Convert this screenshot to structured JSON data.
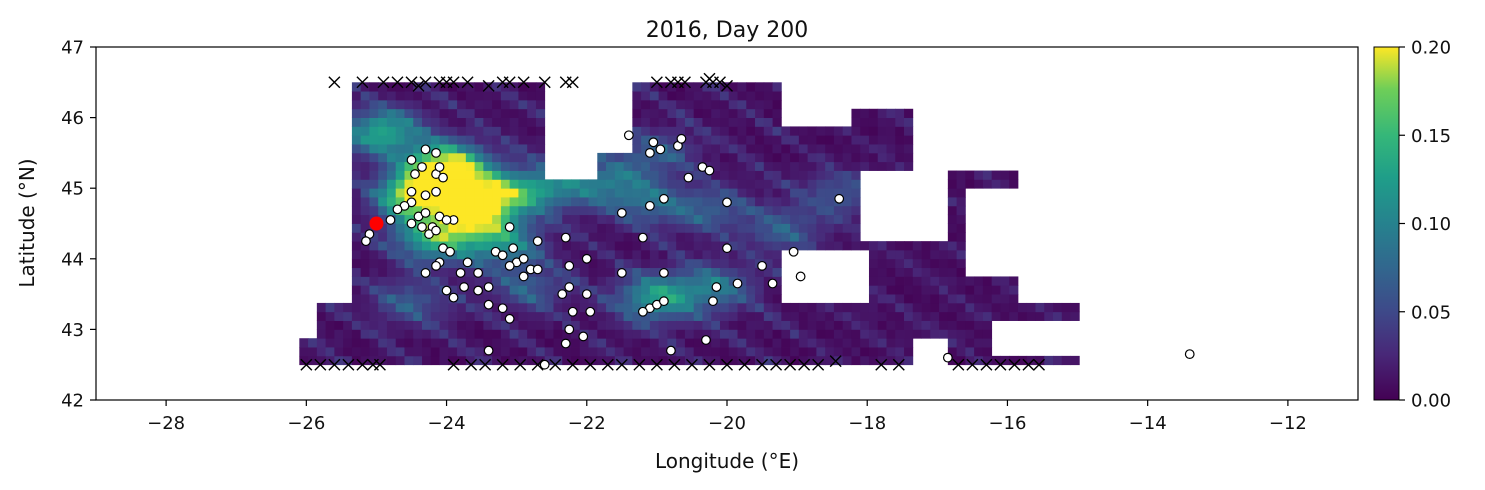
{
  "chart_data": {
    "type": "heatmap",
    "title": "2016, Day 200",
    "xlabel": "Longitude (°E)",
    "ylabel": "Latitude (°N)",
    "xlim": [
      -29,
      -11
    ],
    "ylim": [
      42,
      47
    ],
    "x_ticks": [
      -28,
      -26,
      -24,
      -22,
      -20,
      -18,
      -16,
      -14,
      -12
    ],
    "x_tick_labels": [
      "−28",
      "−26",
      "−24",
      "−22",
      "−20",
      "−18",
      "−16",
      "−14",
      "−12"
    ],
    "y_ticks": [
      42,
      43,
      44,
      45,
      46,
      47
    ],
    "y_tick_labels": [
      "42",
      "43",
      "44",
      "45",
      "46",
      "47"
    ],
    "colorbar": {
      "colormap": "viridis",
      "range": [
        0,
        0.2
      ],
      "ticks": [
        0.0,
        0.05,
        0.1,
        0.15,
        0.2
      ],
      "tick_labels": [
        "0.00",
        "0.05",
        "0.10",
        "0.15",
        "0.20"
      ]
    },
    "colors": {
      "particle_fill": "#ffffff",
      "particle_edge": "#000000",
      "release_point": "#ff0000",
      "beached_marker": "#000000"
    },
    "release_point": {
      "lon": -25.0,
      "lat": 44.5
    },
    "density_hotspots": [
      {
        "lon": -24.0,
        "lat": 45.3,
        "value": 0.2
      },
      {
        "lon": -24.4,
        "lat": 44.9,
        "value": 0.2
      },
      {
        "lon": -23.4,
        "lat": 44.9,
        "value": 0.16
      },
      {
        "lon": -24.9,
        "lat": 45.8,
        "value": 0.12
      },
      {
        "lon": -24.2,
        "lat": 44.3,
        "value": 0.12
      },
      {
        "lon": -23.6,
        "lat": 44.55,
        "value": 0.13
      },
      {
        "lon": -23.2,
        "lat": 44.2,
        "value": 0.08
      },
      {
        "lon": -22.6,
        "lat": 45.0,
        "value": 0.09
      },
      {
        "lon": -21.7,
        "lat": 45.1,
        "value": 0.07
      },
      {
        "lon": -21.1,
        "lat": 44.8,
        "value": 0.06
      },
      {
        "lon": -20.2,
        "lat": 44.7,
        "value": 0.05
      },
      {
        "lon": -21.0,
        "lat": 43.45,
        "value": 0.11
      },
      {
        "lon": -20.2,
        "lat": 43.6,
        "value": 0.07
      },
      {
        "lon": -19.2,
        "lat": 44.4,
        "value": 0.05
      },
      {
        "lon": -18.4,
        "lat": 44.9,
        "value": 0.05
      },
      {
        "lon": -21.0,
        "lat": 45.5,
        "value": 0.05
      },
      {
        "lon": -22.8,
        "lat": 43.6,
        "value": 0.05
      },
      {
        "lon": -24.5,
        "lat": 43.4,
        "value": 0.05
      }
    ],
    "particles": [
      [
        -24.3,
        45.55
      ],
      [
        -24.15,
        45.5
      ],
      [
        -24.35,
        45.3
      ],
      [
        -24.5,
        45.4
      ],
      [
        -24.45,
        45.2
      ],
      [
        -24.15,
        45.2
      ],
      [
        -24.05,
        45.15
      ],
      [
        -24.1,
        45.3
      ],
      [
        -24.5,
        44.95
      ],
      [
        -24.3,
        44.9
      ],
      [
        -24.15,
        44.95
      ],
      [
        -24.5,
        44.8
      ],
      [
        -24.6,
        44.75
      ],
      [
        -24.7,
        44.7
      ],
      [
        -24.4,
        44.6
      ],
      [
        -24.3,
        44.65
      ],
      [
        -24.1,
        44.6
      ],
      [
        -23.9,
        44.55
      ],
      [
        -24.0,
        44.55
      ],
      [
        -24.2,
        44.45
      ],
      [
        -24.35,
        44.45
      ],
      [
        -24.5,
        44.5
      ],
      [
        -24.8,
        44.55
      ],
      [
        -24.25,
        44.35
      ],
      [
        -24.15,
        44.4
      ],
      [
        -25.1,
        44.35
      ],
      [
        -25.15,
        44.25
      ],
      [
        -24.05,
        44.15
      ],
      [
        -23.95,
        44.1
      ],
      [
        -24.1,
        43.95
      ],
      [
        -24.3,
        43.8
      ],
      [
        -24.15,
        43.9
      ],
      [
        -23.8,
        43.8
      ],
      [
        -23.7,
        43.95
      ],
      [
        -23.55,
        43.8
      ],
      [
        -24.0,
        43.55
      ],
      [
        -23.9,
        43.45
      ],
      [
        -23.75,
        43.6
      ],
      [
        -23.55,
        43.55
      ],
      [
        -23.4,
        43.6
      ],
      [
        -23.4,
        43.35
      ],
      [
        -23.2,
        43.3
      ],
      [
        -23.1,
        43.15
      ],
      [
        -23.4,
        42.7
      ],
      [
        -23.3,
        44.1
      ],
      [
        -23.2,
        44.05
      ],
      [
        -23.1,
        44.45
      ],
      [
        -23.05,
        44.15
      ],
      [
        -23.0,
        43.95
      ],
      [
        -22.9,
        44.0
      ],
      [
        -23.1,
        43.9
      ],
      [
        -22.8,
        43.85
      ],
      [
        -22.9,
        43.75
      ],
      [
        -22.7,
        43.85
      ],
      [
        -22.7,
        44.25
      ],
      [
        -22.3,
        44.3
      ],
      [
        -22.25,
        43.9
      ],
      [
        -22.25,
        43.6
      ],
      [
        -22.35,
        43.5
      ],
      [
        -22.2,
        43.25
      ],
      [
        -22.25,
        43.0
      ],
      [
        -22.3,
        42.8
      ],
      [
        -22.0,
        43.5
      ],
      [
        -22.0,
        44.0
      ],
      [
        -21.5,
        43.8
      ],
      [
        -21.2,
        44.3
      ],
      [
        -21.1,
        43.3
      ],
      [
        -21.0,
        43.35
      ],
      [
        -21.2,
        43.25
      ],
      [
        -20.9,
        43.4
      ],
      [
        -20.9,
        43.8
      ],
      [
        -20.8,
        42.7
      ],
      [
        -21.5,
        44.65
      ],
      [
        -21.1,
        44.75
      ],
      [
        -20.9,
        44.85
      ],
      [
        -21.05,
        45.65
      ],
      [
        -21.1,
        45.5
      ],
      [
        -20.95,
        45.55
      ],
      [
        -20.7,
        45.6
      ],
      [
        -20.65,
        45.7
      ],
      [
        -21.4,
        45.75
      ],
      [
        -20.55,
        45.15
      ],
      [
        -20.35,
        45.3
      ],
      [
        -20.25,
        45.25
      ],
      [
        -20.0,
        44.8
      ],
      [
        -20.0,
        44.15
      ],
      [
        -19.5,
        43.9
      ],
      [
        -19.35,
        43.65
      ],
      [
        -19.85,
        43.65
      ],
      [
        -20.15,
        43.6
      ],
      [
        -19.05,
        44.1
      ],
      [
        -18.95,
        43.75
      ],
      [
        -20.2,
        43.4
      ],
      [
        -20.3,
        42.85
      ],
      [
        -18.4,
        44.85
      ],
      [
        -16.85,
        42.6
      ],
      [
        -13.4,
        42.65
      ],
      [
        -22.6,
        42.5
      ],
      [
        -22.05,
        42.9
      ],
      [
        -21.95,
        43.25
      ]
    ],
    "beached_top": [
      [
        -25.6,
        46.5
      ],
      [
        -25.2,
        46.5
      ],
      [
        -24.9,
        46.5
      ],
      [
        -24.7,
        46.5
      ],
      [
        -24.5,
        46.5
      ],
      [
        -24.4,
        46.45
      ],
      [
        -24.3,
        46.5
      ],
      [
        -24.1,
        46.5
      ],
      [
        -24.0,
        46.5
      ],
      [
        -23.9,
        46.5
      ],
      [
        -23.7,
        46.5
      ],
      [
        -23.4,
        46.45
      ],
      [
        -23.2,
        46.5
      ],
      [
        -23.1,
        46.5
      ],
      [
        -22.9,
        46.5
      ],
      [
        -22.6,
        46.5
      ],
      [
        -22.3,
        46.5
      ],
      [
        -22.2,
        46.5
      ],
      [
        -21.0,
        46.5
      ],
      [
        -20.8,
        46.5
      ],
      [
        -20.7,
        46.5
      ],
      [
        -20.6,
        46.5
      ],
      [
        -20.3,
        46.5
      ],
      [
        -20.2,
        46.5
      ],
      [
        -20.0,
        46.45
      ],
      [
        -20.1,
        46.5
      ],
      [
        -20.25,
        46.55
      ]
    ],
    "beached_bottom": [
      [
        -26.0,
        42.5
      ],
      [
        -25.8,
        42.5
      ],
      [
        -25.6,
        42.5
      ],
      [
        -25.4,
        42.5
      ],
      [
        -25.2,
        42.5
      ],
      [
        -25.05,
        42.5
      ],
      [
        -24.95,
        42.5
      ],
      [
        -23.9,
        42.5
      ],
      [
        -23.65,
        42.5
      ],
      [
        -23.45,
        42.5
      ],
      [
        -23.2,
        42.5
      ],
      [
        -22.95,
        42.5
      ],
      [
        -22.7,
        42.5
      ],
      [
        -22.45,
        42.5
      ],
      [
        -22.2,
        42.5
      ],
      [
        -21.95,
        42.5
      ],
      [
        -21.7,
        42.5
      ],
      [
        -21.5,
        42.5
      ],
      [
        -21.25,
        42.5
      ],
      [
        -21.0,
        42.5
      ],
      [
        -20.75,
        42.5
      ],
      [
        -20.5,
        42.5
      ],
      [
        -20.25,
        42.5
      ],
      [
        -20.0,
        42.5
      ],
      [
        -19.75,
        42.5
      ],
      [
        -19.5,
        42.5
      ],
      [
        -19.3,
        42.5
      ],
      [
        -19.1,
        42.5
      ],
      [
        -18.9,
        42.5
      ],
      [
        -18.7,
        42.5
      ],
      [
        -18.45,
        42.55
      ],
      [
        -17.8,
        42.5
      ],
      [
        -17.55,
        42.5
      ],
      [
        -16.7,
        42.5
      ],
      [
        -16.5,
        42.5
      ],
      [
        -16.3,
        42.5
      ],
      [
        -16.1,
        42.5
      ],
      [
        -15.9,
        42.5
      ],
      [
        -15.7,
        42.5
      ],
      [
        -15.55,
        42.5
      ]
    ]
  }
}
